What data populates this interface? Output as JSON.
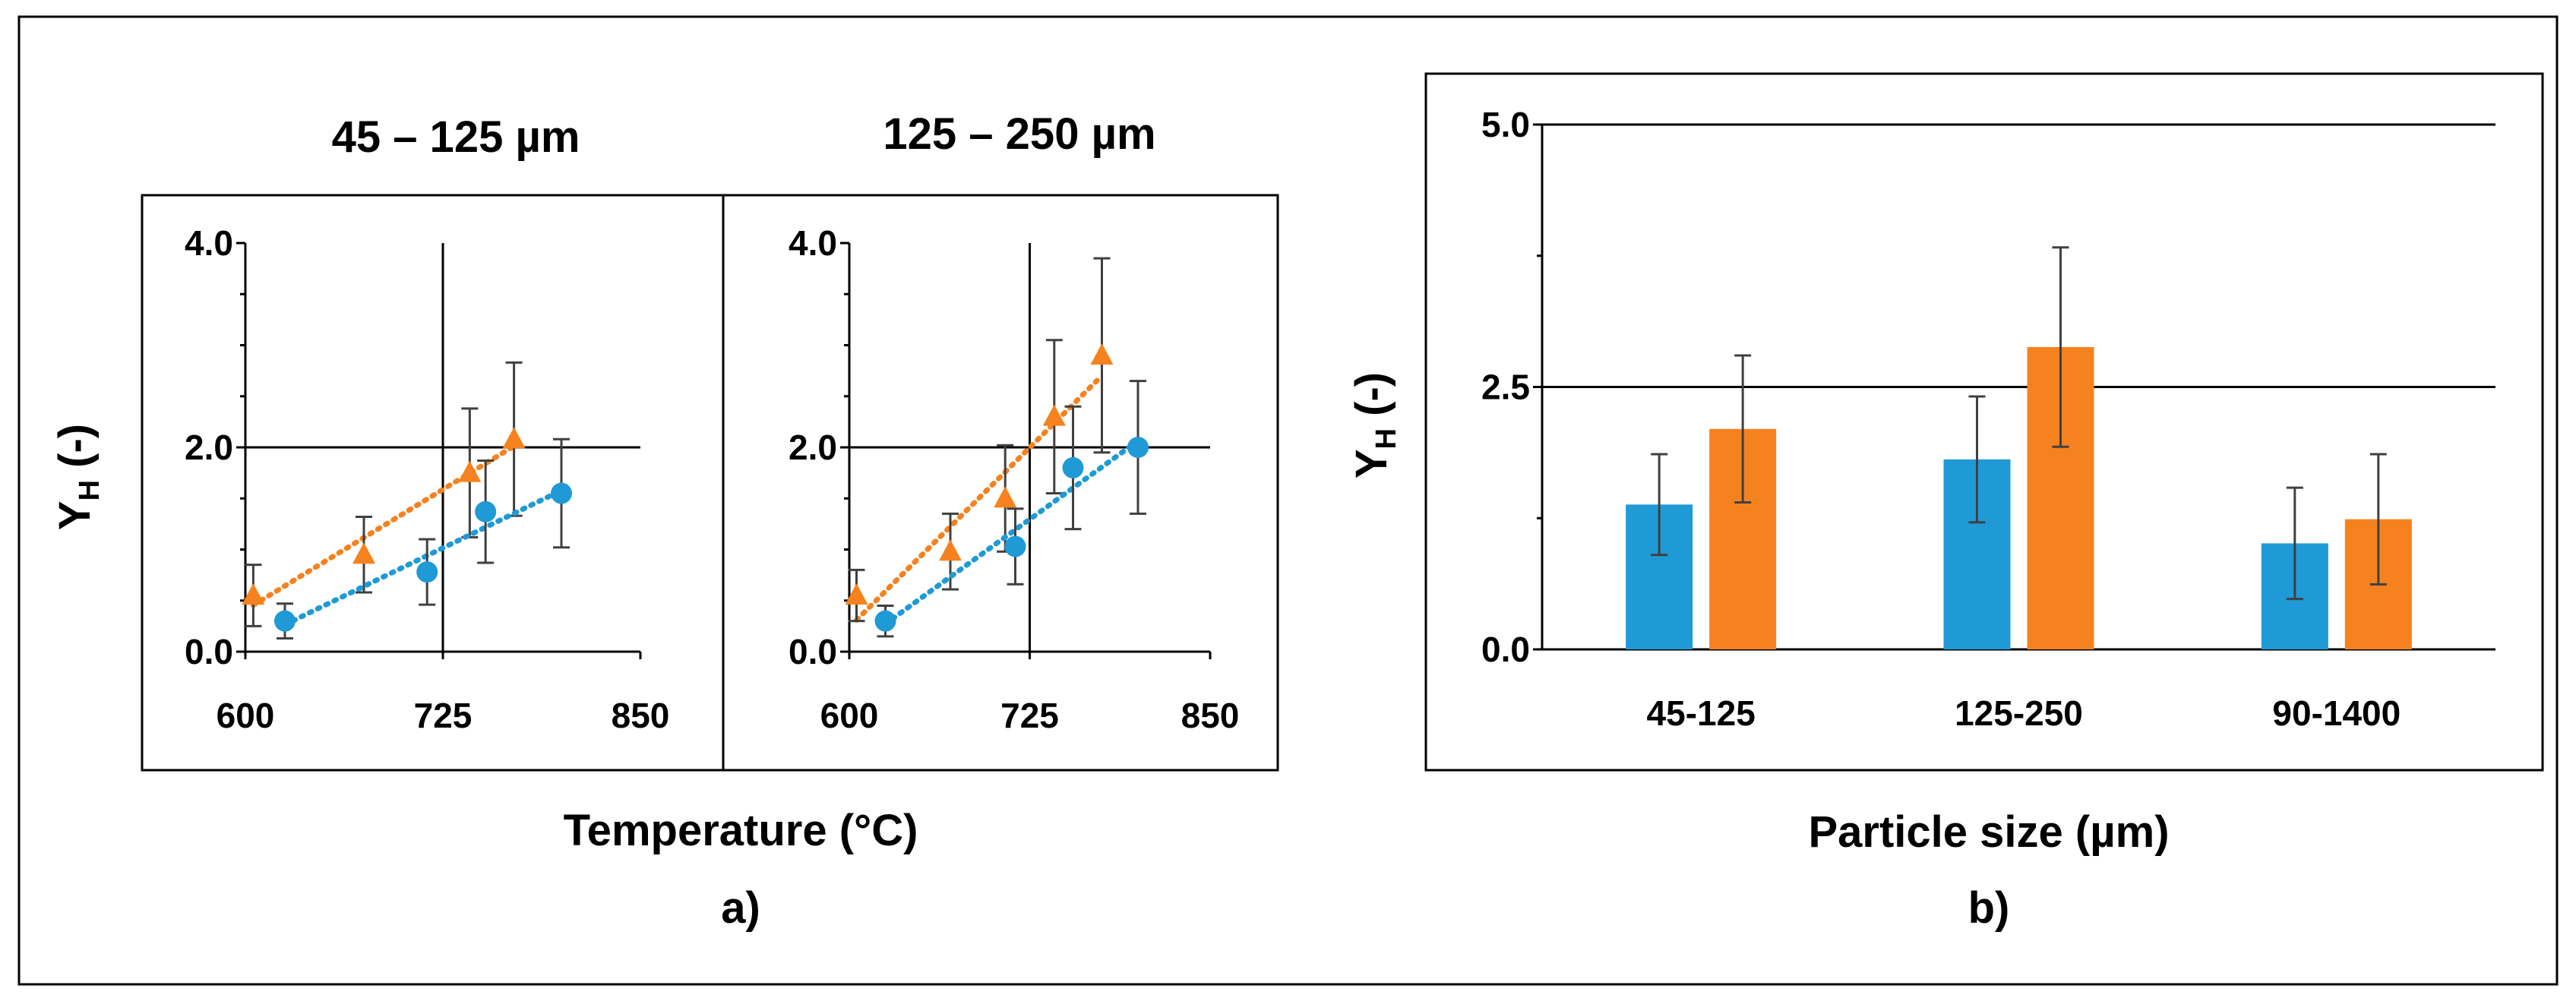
{
  "colors": {
    "series_a": "#1f9ad6",
    "series_b": "#f5821f",
    "error_bar": "#404040"
  },
  "chart_data": [
    {
      "id": "a1",
      "type": "scatter",
      "title": "45 – 125 µm",
      "ylabel_main": "Y",
      "ylabel_sub": "H",
      "ylabel_suffix": " (-)",
      "xlim": [
        600,
        850
      ],
      "ylim": [
        0,
        4
      ],
      "xticks": [
        600,
        725,
        850
      ],
      "xtick_labels": [
        "600",
        "725",
        "850"
      ],
      "yticks": [
        0,
        2,
        4
      ],
      "ytick_labels": [
        "0.0",
        "2.0",
        "4.0"
      ],
      "gridlines": {
        "x": [
          725
        ],
        "y": [
          2
        ]
      },
      "series": [
        {
          "name": "series-b",
          "marker": "triangle",
          "trendline": "dotted",
          "points": [
            {
              "x": 605,
              "y": 0.55,
              "err": 0.3
            },
            {
              "x": 675,
              "y": 0.95,
              "err": 0.37
            },
            {
              "x": 742,
              "y": 1.75,
              "err": 0.63
            },
            {
              "x": 770,
              "y": 2.08,
              "err": 0.75
            }
          ]
        },
        {
          "name": "series-a",
          "marker": "circle",
          "trendline": "dotted",
          "points": [
            {
              "x": 625,
              "y": 0.3,
              "err": 0.17
            },
            {
              "x": 715,
              "y": 0.78,
              "err": 0.32
            },
            {
              "x": 752,
              "y": 1.37,
              "err": 0.5
            },
            {
              "x": 800,
              "y": 1.55,
              "err": 0.53
            }
          ]
        }
      ]
    },
    {
      "id": "a2",
      "type": "scatter",
      "title": "125 – 250 µm",
      "xlim": [
        600,
        850
      ],
      "ylim": [
        0,
        4
      ],
      "xticks": [
        600,
        725,
        850
      ],
      "xtick_labels": [
        "600",
        "725",
        "850"
      ],
      "yticks": [
        0,
        2,
        4
      ],
      "ytick_labels": [
        "0.0",
        "2.0",
        "4.0"
      ],
      "gridlines": {
        "x": [
          725
        ],
        "y": [
          2
        ]
      },
      "series": [
        {
          "name": "series-b",
          "marker": "triangle",
          "trendline": "dotted",
          "points": [
            {
              "x": 605,
              "y": 0.55,
              "err": 0.25
            },
            {
              "x": 670,
              "y": 0.98,
              "err": 0.37
            },
            {
              "x": 708,
              "y": 1.5,
              "err": 0.52
            },
            {
              "x": 742,
              "y": 2.3,
              "err": 0.75
            },
            {
              "x": 775,
              "y": 2.9,
              "err": 0.95
            }
          ]
        },
        {
          "name": "series-a",
          "marker": "circle",
          "trendline": "dotted",
          "points": [
            {
              "x": 625,
              "y": 0.3,
              "err": 0.15
            },
            {
              "x": 715,
              "y": 1.03,
              "err": 0.37
            },
            {
              "x": 755,
              "y": 1.8,
              "err": 0.6
            },
            {
              "x": 800,
              "y": 2.0,
              "err": 0.65
            }
          ]
        }
      ]
    },
    {
      "id": "b",
      "type": "bar",
      "categories": [
        "45-125",
        "125-250",
        "90-1400"
      ],
      "ylabel_main": "Y",
      "ylabel_sub": "H",
      "ylabel_suffix": " (-)",
      "xlabel": "Particle size (µm)",
      "ylim": [
        0,
        5
      ],
      "yticks": [
        0,
        2.5,
        5
      ],
      "ytick_labels": [
        "0.0",
        "2.5",
        "5.0"
      ],
      "gridlines": {
        "y": [
          2.5
        ]
      },
      "series": [
        {
          "name": "series-a",
          "values": [
            1.38,
            1.81,
            1.01
          ],
          "errors": [
            0.48,
            0.6,
            0.53
          ]
        },
        {
          "name": "series-b",
          "values": [
            2.1,
            2.88,
            1.24
          ],
          "errors": [
            0.7,
            0.95,
            0.62
          ]
        }
      ]
    }
  ],
  "shared": {
    "temperature_label": "Temperature (°C)",
    "panel_a_label": "a)",
    "panel_b_label": "b)"
  }
}
